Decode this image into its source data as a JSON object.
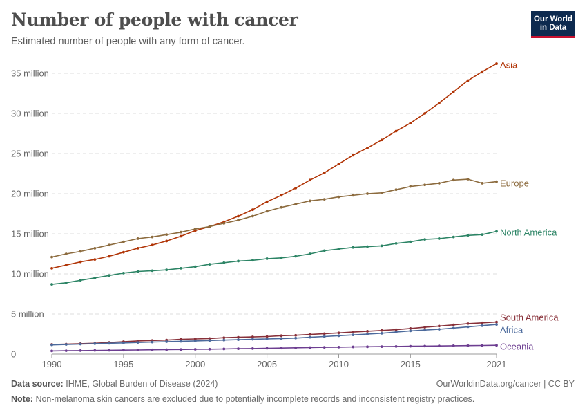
{
  "header": {
    "title": "Number of people with cancer",
    "subtitle": "Estimated number of people with any form of cancer.",
    "logo_line1": "Our World",
    "logo_line2": "in Data"
  },
  "footer": {
    "source_label": "Data source:",
    "source_text": "IHME, Global Burden of Disease (2024)",
    "url_text": "OurWorldinData.org/cancer | CC BY",
    "note_label": "Note:",
    "note_text": "Non-melanoma skin cancers are excluded due to potentially incomplete records and inconsistent registry practices."
  },
  "chart_data": {
    "type": "line",
    "title": "Number of people with cancer",
    "subtitle": "Estimated number of people with any form of cancer.",
    "xlabel": "",
    "ylabel": "",
    "xlim": [
      1990,
      2021
    ],
    "ylim": [
      0,
      35000000
    ],
    "x_ticks": [
      1990,
      1995,
      2000,
      2005,
      2010,
      2015,
      2021
    ],
    "x_tick_labels": [
      "1990",
      "1995",
      "2000",
      "2005",
      "2010",
      "2015",
      "2021"
    ],
    "y_ticks": [
      0,
      5000000,
      10000000,
      15000000,
      20000000,
      25000000,
      30000000,
      35000000
    ],
    "y_tick_labels": [
      "0",
      "5 million",
      "10 million",
      "15 million",
      "20 million",
      "25 million",
      "30 million",
      "35 million"
    ],
    "grid": "horizontal dashed",
    "legend": "labels at line ends (right)",
    "x": [
      1990,
      1991,
      1992,
      1993,
      1994,
      1995,
      1996,
      1997,
      1998,
      1999,
      2000,
      2001,
      2002,
      2003,
      2004,
      2005,
      2006,
      2007,
      2008,
      2009,
      2010,
      2011,
      2012,
      2013,
      2014,
      2015,
      2016,
      2017,
      2018,
      2019,
      2020,
      2021
    ],
    "series": [
      {
        "name": "Asia",
        "color": "#b13507",
        "values": [
          10700000,
          11100000,
          11500000,
          11800000,
          12200000,
          12700000,
          13200000,
          13600000,
          14100000,
          14700000,
          15400000,
          15900000,
          16500000,
          17200000,
          18000000,
          19000000,
          19800000,
          20700000,
          21700000,
          22600000,
          23700000,
          24800000,
          25700000,
          26700000,
          27800000,
          28800000,
          30000000,
          31300000,
          32700000,
          34100000,
          35200000,
          36200000
        ]
      },
      {
        "name": "Europe",
        "color": "#8c6b3e",
        "values": [
          12100000,
          12500000,
          12800000,
          13200000,
          13600000,
          14000000,
          14400000,
          14600000,
          14900000,
          15200000,
          15600000,
          15900000,
          16300000,
          16700000,
          17200000,
          17800000,
          18300000,
          18700000,
          19100000,
          19300000,
          19600000,
          19800000,
          20000000,
          20100000,
          20500000,
          20900000,
          21100000,
          21300000,
          21700000,
          21800000,
          21300000,
          21500000
        ]
      },
      {
        "name": "North America",
        "color": "#2c8465",
        "values": [
          8700000,
          8900000,
          9200000,
          9500000,
          9800000,
          10100000,
          10300000,
          10400000,
          10500000,
          10700000,
          10900000,
          11200000,
          11400000,
          11600000,
          11700000,
          11900000,
          12000000,
          12200000,
          12500000,
          12900000,
          13100000,
          13300000,
          13400000,
          13500000,
          13800000,
          14000000,
          14300000,
          14400000,
          14600000,
          14800000,
          14900000,
          15300000
        ]
      },
      {
        "name": "South America",
        "color": "#883039",
        "values": [
          1200000,
          1250000,
          1300000,
          1350000,
          1450000,
          1550000,
          1650000,
          1700000,
          1750000,
          1850000,
          1900000,
          1950000,
          2050000,
          2100000,
          2150000,
          2200000,
          2300000,
          2350000,
          2450000,
          2550000,
          2650000,
          2750000,
          2850000,
          2950000,
          3050000,
          3200000,
          3350000,
          3500000,
          3650000,
          3800000,
          3900000,
          4000000
        ]
      },
      {
        "name": "Africa",
        "color": "#4c6a9c",
        "values": [
          1150000,
          1200000,
          1250000,
          1300000,
          1350000,
          1400000,
          1450000,
          1500000,
          1550000,
          1600000,
          1650000,
          1700000,
          1750000,
          1800000,
          1850000,
          1900000,
          1950000,
          2000000,
          2100000,
          2200000,
          2300000,
          2400000,
          2500000,
          2600000,
          2750000,
          2900000,
          3000000,
          3100000,
          3250000,
          3400000,
          3550000,
          3700000
        ]
      },
      {
        "name": "Oceania",
        "color": "#6d3e91",
        "values": [
          400000,
          420000,
          440000,
          460000,
          480000,
          500000,
          520000,
          540000,
          560000,
          580000,
          600000,
          620000,
          650000,
          680000,
          700000,
          730000,
          760000,
          790000,
          820000,
          850000,
          870000,
          900000,
          920000,
          940000,
          960000,
          980000,
          1000000,
          1020000,
          1040000,
          1060000,
          1080000,
          1100000
        ]
      }
    ]
  }
}
